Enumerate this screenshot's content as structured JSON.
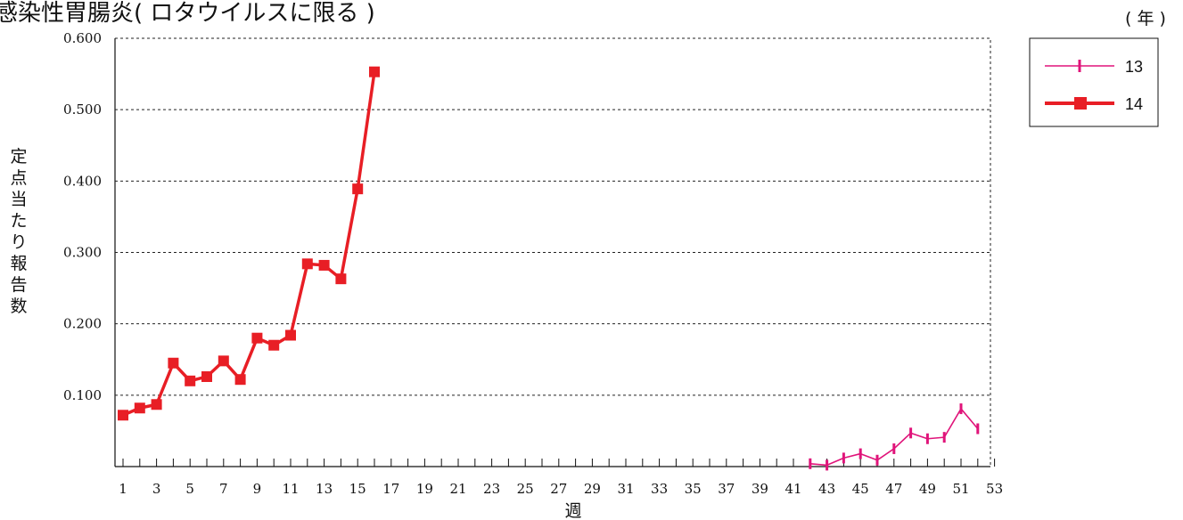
{
  "chart_data": {
    "type": "line",
    "title": "感染性胃腸炎( ロタウイルスに限る )",
    "xlabel": "週",
    "ylabel": "定点当たり報告数",
    "legend_title": "( 年 )",
    "legend_position": "top-right",
    "grid": "horizontal-dashed",
    "ylim": [
      0,
      0.6
    ],
    "xlim": [
      1,
      53
    ],
    "y_ticks": [
      "0.100",
      "0.200",
      "0.300",
      "0.400",
      "0.500",
      "0.600"
    ],
    "y_tick_values": [
      0.1,
      0.2,
      0.3,
      0.4,
      0.5,
      0.6
    ],
    "x_ticks": [
      "1",
      "3",
      "5",
      "7",
      "9",
      "11",
      "13",
      "15",
      "17",
      "19",
      "21",
      "23",
      "25",
      "27",
      "29",
      "31",
      "33",
      "35",
      "37",
      "39",
      "41",
      "43",
      "45",
      "47",
      "49",
      "51",
      "53"
    ],
    "series": [
      {
        "name": "13",
        "color": "#e0147a",
        "marker": "tick",
        "x": [
          42,
          43,
          44,
          45,
          46,
          47,
          48,
          49,
          50,
          51,
          52
        ],
        "y": [
          0.004,
          0.002,
          0.012,
          0.018,
          0.009,
          0.025,
          0.047,
          0.039,
          0.041,
          0.081,
          0.053
        ]
      },
      {
        "name": "14",
        "color": "#e81e25",
        "marker": "square",
        "x": [
          1,
          2,
          3,
          4,
          5,
          6,
          7,
          8,
          9,
          10,
          11,
          12,
          13,
          14,
          15,
          16
        ],
        "y": [
          0.072,
          0.082,
          0.087,
          0.145,
          0.12,
          0.126,
          0.148,
          0.122,
          0.18,
          0.17,
          0.184,
          0.284,
          0.282,
          0.263,
          0.389,
          0.553
        ]
      }
    ]
  }
}
